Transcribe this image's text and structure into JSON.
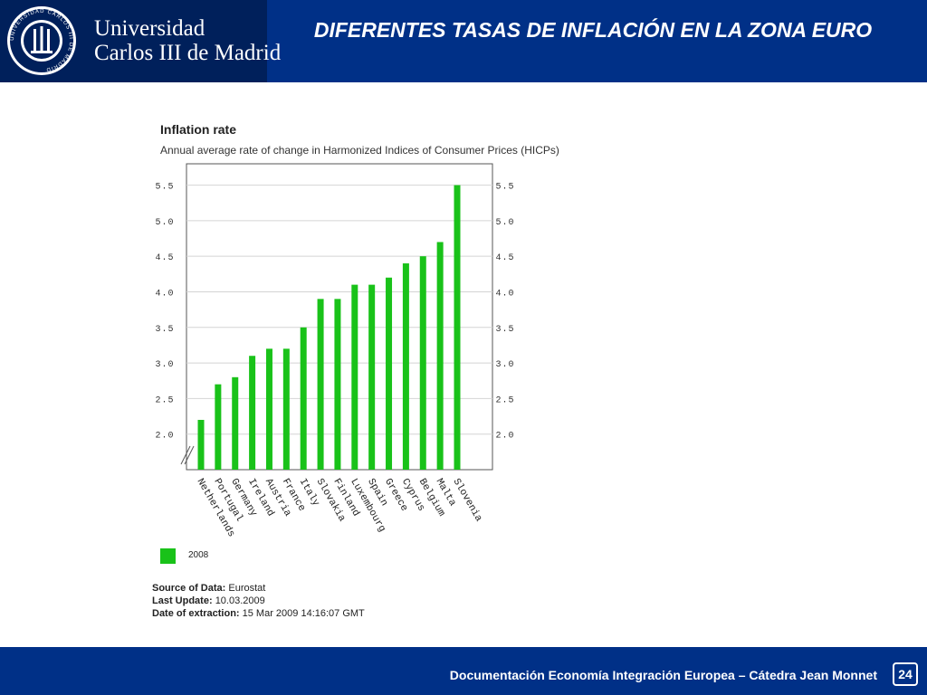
{
  "header": {
    "university_line1": "Universidad",
    "university_line2": "Carlos III de Madrid",
    "seal_text": "UNIVERSIDAD CARLOS III DE MADRID",
    "title": "DIFERENTES TASAS DE INFLACIÓN EN LA ZONA EURO"
  },
  "chart_data": {
    "type": "bar",
    "title": "Inflation rate",
    "subtitle": "Annual average rate of change in Harmonized Indices of Consumer Prices (HICPs)",
    "categories": [
      "Netherlands",
      "Portugal",
      "Germany",
      "Ireland",
      "Austria",
      "France",
      "Italy",
      "Slovakia",
      "Finland",
      "Luxembourg",
      "Spain",
      "Greece",
      "Cyprus",
      "Belgium",
      "Malta",
      "Slovenia"
    ],
    "series": [
      {
        "name": "2008",
        "values": [
          2.2,
          2.7,
          2.8,
          3.1,
          3.2,
          3.2,
          3.5,
          3.9,
          3.9,
          4.1,
          4.1,
          4.2,
          4.4,
          4.5,
          4.7,
          5.5
        ],
        "color": "#19c219"
      }
    ],
    "y_ticks": [
      "2.0",
      "2.5",
      "3.0",
      "3.5",
      "4.0",
      "4.5",
      "5.0",
      "5.5"
    ],
    "ylim": [
      1.5,
      5.8
    ],
    "axis_break": true,
    "grid": true,
    "legend": "bottom-left"
  },
  "source": {
    "source_label": "Source of Data:",
    "source_value": "Eurostat",
    "update_label": "Last Update:",
    "update_value": "10.03.2009",
    "extraction_label": "Date of extraction:",
    "extraction_value": "15 Mar 2009 14:16:07 GMT"
  },
  "footer": {
    "text": "Documentación Economía Integración Europea – Cátedra Jean Monnet",
    "page": "24"
  }
}
